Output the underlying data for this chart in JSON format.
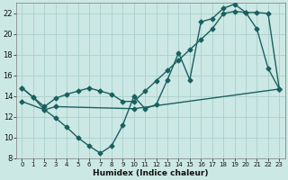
{
  "xlabel": "Humidex (Indice chaleur)",
  "bg_color": "#cce8e4",
  "grid_color": "#aacfcb",
  "line_color": "#1a6060",
  "xlim": [
    -0.5,
    23.5
  ],
  "ylim": [
    8,
    23
  ],
  "xticks": [
    0,
    1,
    2,
    3,
    4,
    5,
    6,
    7,
    8,
    9,
    10,
    11,
    12,
    13,
    14,
    15,
    16,
    17,
    18,
    19,
    20,
    21,
    22,
    23
  ],
  "yticks": [
    8,
    10,
    12,
    14,
    16,
    18,
    20,
    22
  ],
  "line1_x": [
    0,
    1,
    2,
    3,
    4,
    5,
    6,
    7,
    8,
    9,
    10,
    11,
    12,
    13,
    14,
    15,
    16,
    17,
    18,
    19,
    20,
    21,
    22,
    23
  ],
  "line1_y": [
    14.8,
    13.9,
    12.7,
    11.9,
    11.0,
    10.0,
    9.2,
    8.5,
    9.2,
    11.2,
    14.0,
    12.8,
    13.2,
    15.6,
    18.2,
    15.6,
    21.2,
    21.5,
    22.5,
    22.9,
    22.1,
    20.5,
    16.7,
    14.7
  ],
  "line2_x": [
    0,
    1,
    2,
    3,
    4,
    5,
    6,
    7,
    8,
    9,
    10,
    11,
    12,
    13,
    14,
    15,
    16,
    17,
    18,
    19,
    20,
    21,
    22,
    23
  ],
  "line2_y": [
    14.8,
    13.9,
    13.0,
    13.8,
    14.2,
    14.5,
    14.8,
    14.5,
    14.2,
    13.5,
    13.5,
    14.5,
    15.5,
    16.5,
    17.5,
    18.5,
    19.5,
    20.5,
    22.0,
    22.2,
    22.1,
    22.1,
    22.0,
    14.7
  ],
  "line3_x": [
    0,
    2,
    3,
    10,
    23
  ],
  "line3_y": [
    13.5,
    12.7,
    13.0,
    12.8,
    14.7
  ]
}
